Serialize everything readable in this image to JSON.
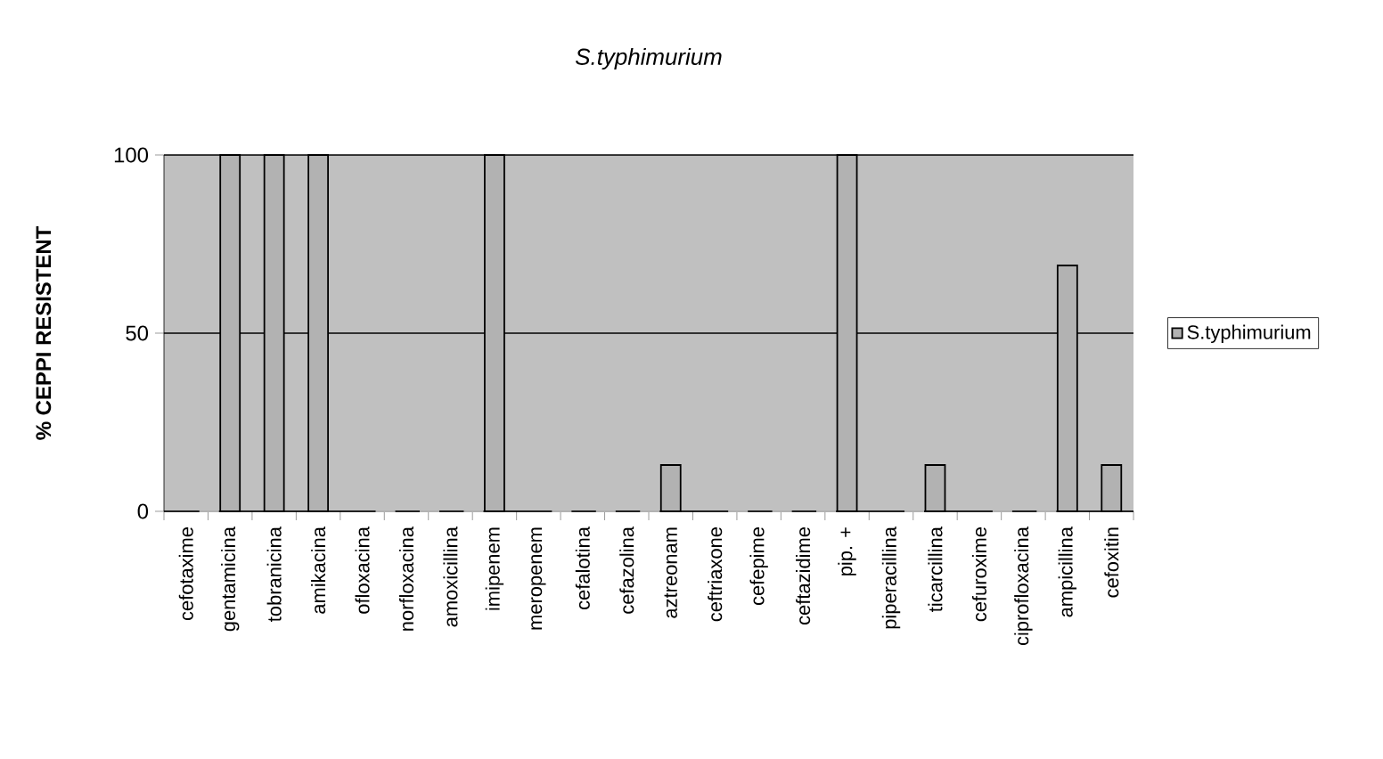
{
  "chart_data": {
    "type": "bar",
    "title": "S.typhimurium",
    "ylabel": "% CEPPI RESISTENT",
    "categories": [
      "cefotaxime",
      "gentamicina",
      "tobranicina",
      "amikacina",
      "ofloxacina",
      "norfloxacina",
      "amoxicillina",
      "imipenem",
      "meropenem",
      "cefalotina",
      "cefazolina",
      "aztreonam",
      "ceftriaxone",
      "cefepime",
      "ceftazidime",
      "pip. +",
      "piperacillina",
      "ticarcillina",
      "cefuroxime",
      "ciprofloxacina",
      "ampicillina",
      "cefoxitin"
    ],
    "series": [
      {
        "name": "S.typhimurium",
        "color": "#b2b2b2",
        "values": [
          0,
          100,
          100,
          100,
          0,
          0,
          0,
          100,
          0,
          0,
          0,
          13,
          0,
          0,
          0,
          100,
          0,
          13,
          0,
          0,
          69,
          13
        ]
      }
    ],
    "ylim": [
      0,
      100
    ],
    "yticks": [
      0,
      50,
      100
    ],
    "grid": "y",
    "legend": "right"
  }
}
